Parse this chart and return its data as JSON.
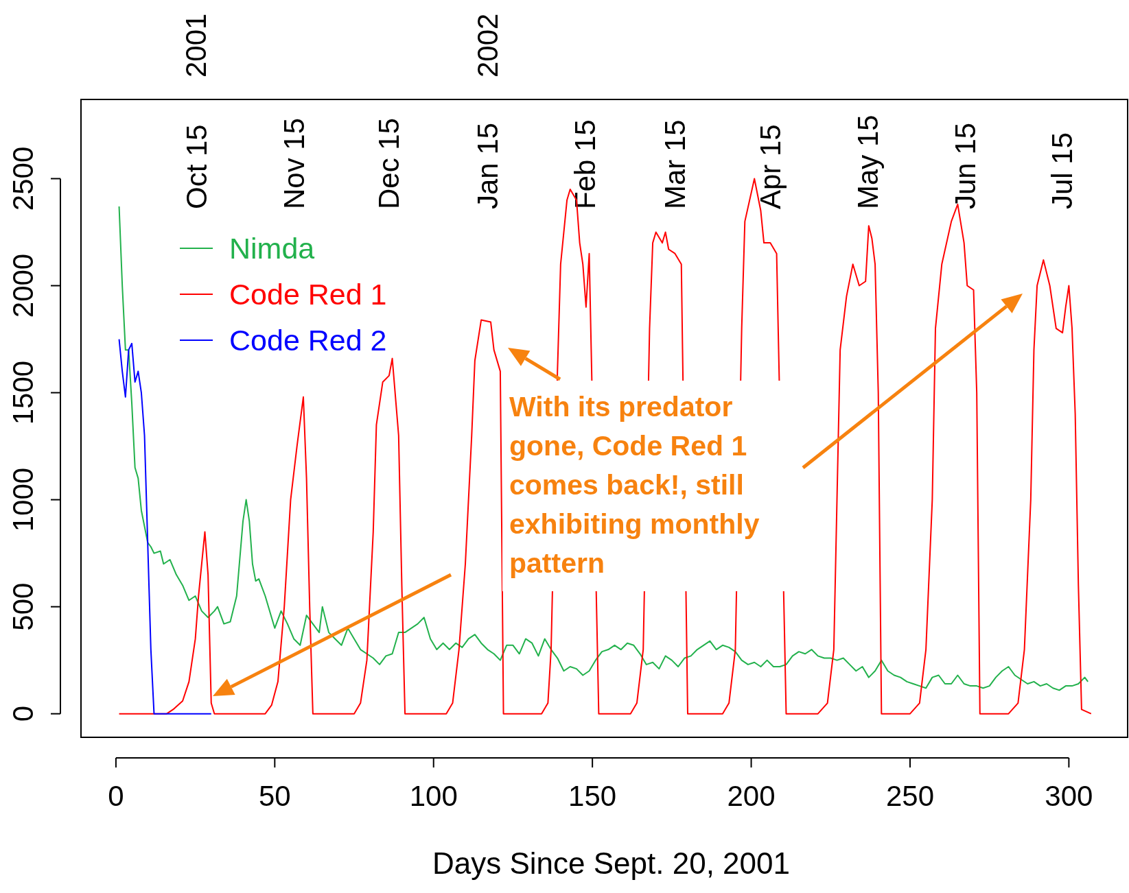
{
  "chart_data": {
    "type": "line",
    "xlabel": "Days Since Sept. 20, 2001",
    "xlim": [
      -11,
      318.5
    ],
    "xticks": [
      0,
      50,
      100,
      150,
      200,
      250,
      300
    ],
    "ylim": [
      -110,
      2870
    ],
    "yticks": [
      0,
      500,
      1000,
      1500,
      2000,
      2500
    ],
    "legend": "top left",
    "grid": false,
    "annotations": [
      "With its predator gone, Code Red 1 comes back!, still exhibiting monthly pattern",
      "Oct 15",
      "Nov 15",
      "Dec 15",
      "Jan 15",
      "Feb 15",
      "Mar 15",
      "Apr 15",
      "May 15",
      "Jun 15",
      "Jul 15",
      "2001",
      "2002"
    ],
    "series": [
      {
        "name": "Nimda",
        "color": "#22b14c",
        "x": [
          1,
          2,
          3,
          4,
          5,
          6,
          7,
          8,
          10,
          11,
          12,
          14,
          15,
          17,
          19,
          21,
          23,
          25,
          27,
          29,
          31,
          32,
          34,
          36,
          38,
          40,
          41,
          42,
          43,
          44,
          45,
          47,
          49,
          50,
          52,
          54,
          56,
          58,
          60,
          62,
          64,
          65,
          67,
          69,
          71,
          73,
          75,
          77,
          79,
          81,
          83,
          85,
          87,
          89,
          91,
          93,
          95,
          97,
          99,
          101,
          103,
          105,
          107,
          109,
          111,
          113,
          115,
          117,
          119,
          121,
          123,
          125,
          127,
          129,
          131,
          133,
          135,
          137,
          139,
          141,
          143,
          145,
          147,
          149,
          151,
          153,
          155,
          157,
          159,
          161,
          163,
          165,
          167,
          169,
          171,
          173,
          175,
          177,
          179,
          181,
          183,
          185,
          187,
          189,
          191,
          193,
          195,
          197,
          199,
          201,
          203,
          205,
          207,
          209,
          211,
          213,
          215,
          217,
          219,
          221,
          223,
          225,
          227,
          229,
          231,
          233,
          235,
          237,
          239,
          241,
          243,
          245,
          247,
          249,
          251,
          253,
          255,
          257,
          259,
          261,
          263,
          265,
          267,
          269,
          271,
          273,
          275,
          277,
          279,
          281,
          283,
          285,
          287,
          289,
          291,
          293,
          295,
          297,
          299,
          301,
          303,
          305,
          306
        ],
        "values": [
          2370,
          2000,
          1700,
          1700,
          1450,
          1150,
          1100,
          950,
          800,
          780,
          750,
          760,
          700,
          720,
          650,
          600,
          530,
          550,
          480,
          450,
          480,
          500,
          420,
          430,
          550,
          900,
          1000,
          900,
          700,
          620,
          630,
          550,
          450,
          400,
          480,
          420,
          350,
          320,
          460,
          420,
          380,
          500,
          380,
          350,
          320,
          400,
          350,
          300,
          280,
          260,
          230,
          270,
          280,
          380,
          380,
          400,
          420,
          450,
          350,
          300,
          330,
          300,
          330,
          310,
          350,
          370,
          330,
          300,
          280,
          250,
          320,
          320,
          280,
          350,
          330,
          270,
          350,
          300,
          260,
          200,
          220,
          210,
          180,
          200,
          250,
          290,
          300,
          320,
          300,
          330,
          320,
          280,
          230,
          240,
          210,
          270,
          250,
          220,
          260,
          270,
          300,
          320,
          340,
          300,
          320,
          310,
          290,
          250,
          230,
          240,
          220,
          250,
          220,
          220,
          230,
          270,
          290,
          280,
          300,
          270,
          260,
          260,
          250,
          260,
          230,
          200,
          220,
          170,
          200,
          250,
          200,
          180,
          170,
          150,
          140,
          130,
          120,
          170,
          180,
          140,
          140,
          180,
          140,
          130,
          130,
          120,
          130,
          170,
          200,
          220,
          180,
          160,
          140,
          150,
          130,
          140,
          120,
          110,
          130,
          130,
          140,
          170,
          150
        ]
      },
      {
        "name": "Code Red 1",
        "color": "#ff0000",
        "x": [
          1,
          16,
          18,
          21,
          23,
          25,
          26,
          27,
          28,
          29,
          30,
          31,
          47,
          49,
          51,
          53,
          55,
          57,
          59,
          60,
          61,
          62,
          75,
          77,
          79,
          81,
          82,
          84,
          86,
          87,
          89,
          90,
          91,
          104,
          106,
          108,
          110,
          112,
          113,
          115,
          118,
          119,
          121,
          122,
          134,
          136,
          137,
          139,
          140,
          142,
          143,
          145,
          146,
          147,
          148,
          149,
          152,
          162,
          164,
          166,
          168,
          169,
          170,
          172,
          173,
          174,
          176,
          178,
          180,
          191,
          193,
          195,
          197,
          198,
          201,
          203,
          204,
          206,
          208,
          211,
          221,
          224,
          226,
          227,
          228,
          230,
          232,
          234,
          236,
          237,
          238,
          239,
          240,
          241,
          250,
          253,
          255,
          257,
          258,
          260,
          263,
          265,
          267,
          268,
          270,
          271,
          272,
          281,
          284,
          286,
          288,
          289,
          290,
          292,
          294,
          296,
          298,
          299,
          300,
          301,
          302,
          303,
          304,
          307
        ],
        "values": [
          0,
          0,
          20,
          60,
          150,
          350,
          550,
          700,
          850,
          650,
          50,
          0,
          0,
          40,
          150,
          500,
          1000,
          1250,
          1480,
          1100,
          500,
          0,
          0,
          50,
          250,
          850,
          1350,
          1550,
          1580,
          1660,
          1300,
          600,
          0,
          0,
          50,
          300,
          700,
          1300,
          1650,
          1840,
          1830,
          1700,
          1600,
          0,
          0,
          50,
          300,
          1600,
          2100,
          2400,
          2450,
          2400,
          2200,
          2100,
          1900,
          2150,
          0,
          0,
          50,
          300,
          1800,
          2200,
          2250,
          2200,
          2250,
          2170,
          2150,
          2100,
          0,
          0,
          50,
          300,
          1800,
          2300,
          2500,
          2350,
          2200,
          2200,
          2150,
          0,
          0,
          50,
          300,
          1000,
          1700,
          1950,
          2100,
          2000,
          2020,
          2280,
          2220,
          2100,
          1500,
          0,
          0,
          50,
          300,
          1000,
          1800,
          2100,
          2300,
          2380,
          2200,
          2000,
          1980,
          1500,
          0,
          0,
          50,
          300,
          1000,
          1700,
          2000,
          2120,
          2000,
          1800,
          1780,
          1900,
          2000,
          1800,
          1400,
          600,
          20,
          0
        ]
      },
      {
        "name": "Code Red 2",
        "color": "#0000ff",
        "x": [
          1,
          2,
          3,
          4,
          5,
          6,
          7,
          8,
          9,
          10,
          11,
          12,
          30
        ],
        "values": [
          1750,
          1600,
          1480,
          1700,
          1730,
          1550,
          1600,
          1500,
          1300,
          800,
          300,
          0,
          0
        ]
      }
    ]
  }
}
